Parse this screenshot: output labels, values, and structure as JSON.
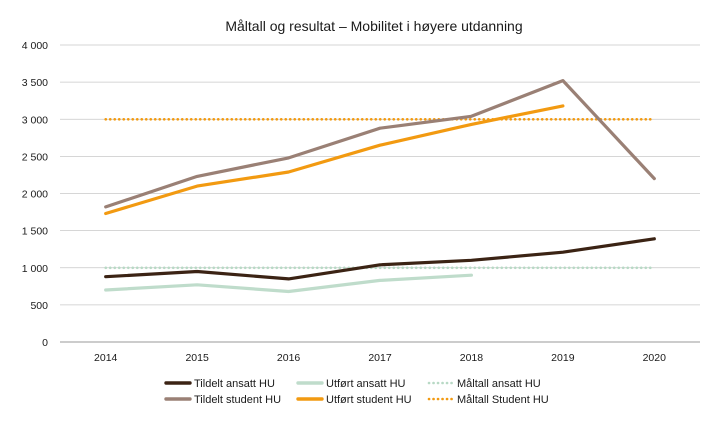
{
  "chart_data": {
    "type": "line",
    "title": "Måltall og resultat – Mobilitet i høyere utdanning",
    "xlabel": "",
    "ylabel": "",
    "ylim": [
      0,
      4000
    ],
    "yticks": [
      0,
      500,
      1000,
      1500,
      2000,
      2500,
      3000,
      3500,
      4000
    ],
    "ytick_labels": [
      "0",
      "500",
      "1 000",
      "1 500",
      "2 000",
      "2 500",
      "3 000",
      "3 500",
      "4 000"
    ],
    "categories": [
      "2014",
      "2015",
      "2016",
      "2017",
      "2018",
      "2019",
      "2020"
    ],
    "grid": "horizontal",
    "legend_position": "bottom",
    "series": [
      {
        "name": "Tildelt ansatt HU",
        "color": "#3b2314",
        "style": "solid",
        "values": [
          880,
          950,
          850,
          1040,
          1100,
          1210,
          1390
        ]
      },
      {
        "name": "Tildelt student HU",
        "color": "#9a8075",
        "style": "solid",
        "values": [
          1820,
          2230,
          2480,
          2880,
          3040,
          3520,
          2200
        ]
      },
      {
        "name": "Utført ansatt HU",
        "color": "#bfdccb",
        "style": "solid",
        "values": [
          700,
          770,
          680,
          830,
          900,
          null,
          null
        ]
      },
      {
        "name": "Utført student HU",
        "color": "#f29a11",
        "style": "solid",
        "values": [
          1730,
          2100,
          2290,
          2650,
          2930,
          3180,
          null
        ]
      },
      {
        "name": "Måltall ansatt HU",
        "color": "#b8d9c5",
        "style": "dotted",
        "values": [
          1000,
          1000,
          1000,
          1000,
          1000,
          1000,
          1000
        ]
      },
      {
        "name": "Måltall Student HU",
        "color": "#f29a11",
        "style": "dotted",
        "values": [
          3000,
          3000,
          3000,
          3000,
          3000,
          3000,
          3000
        ]
      }
    ]
  }
}
